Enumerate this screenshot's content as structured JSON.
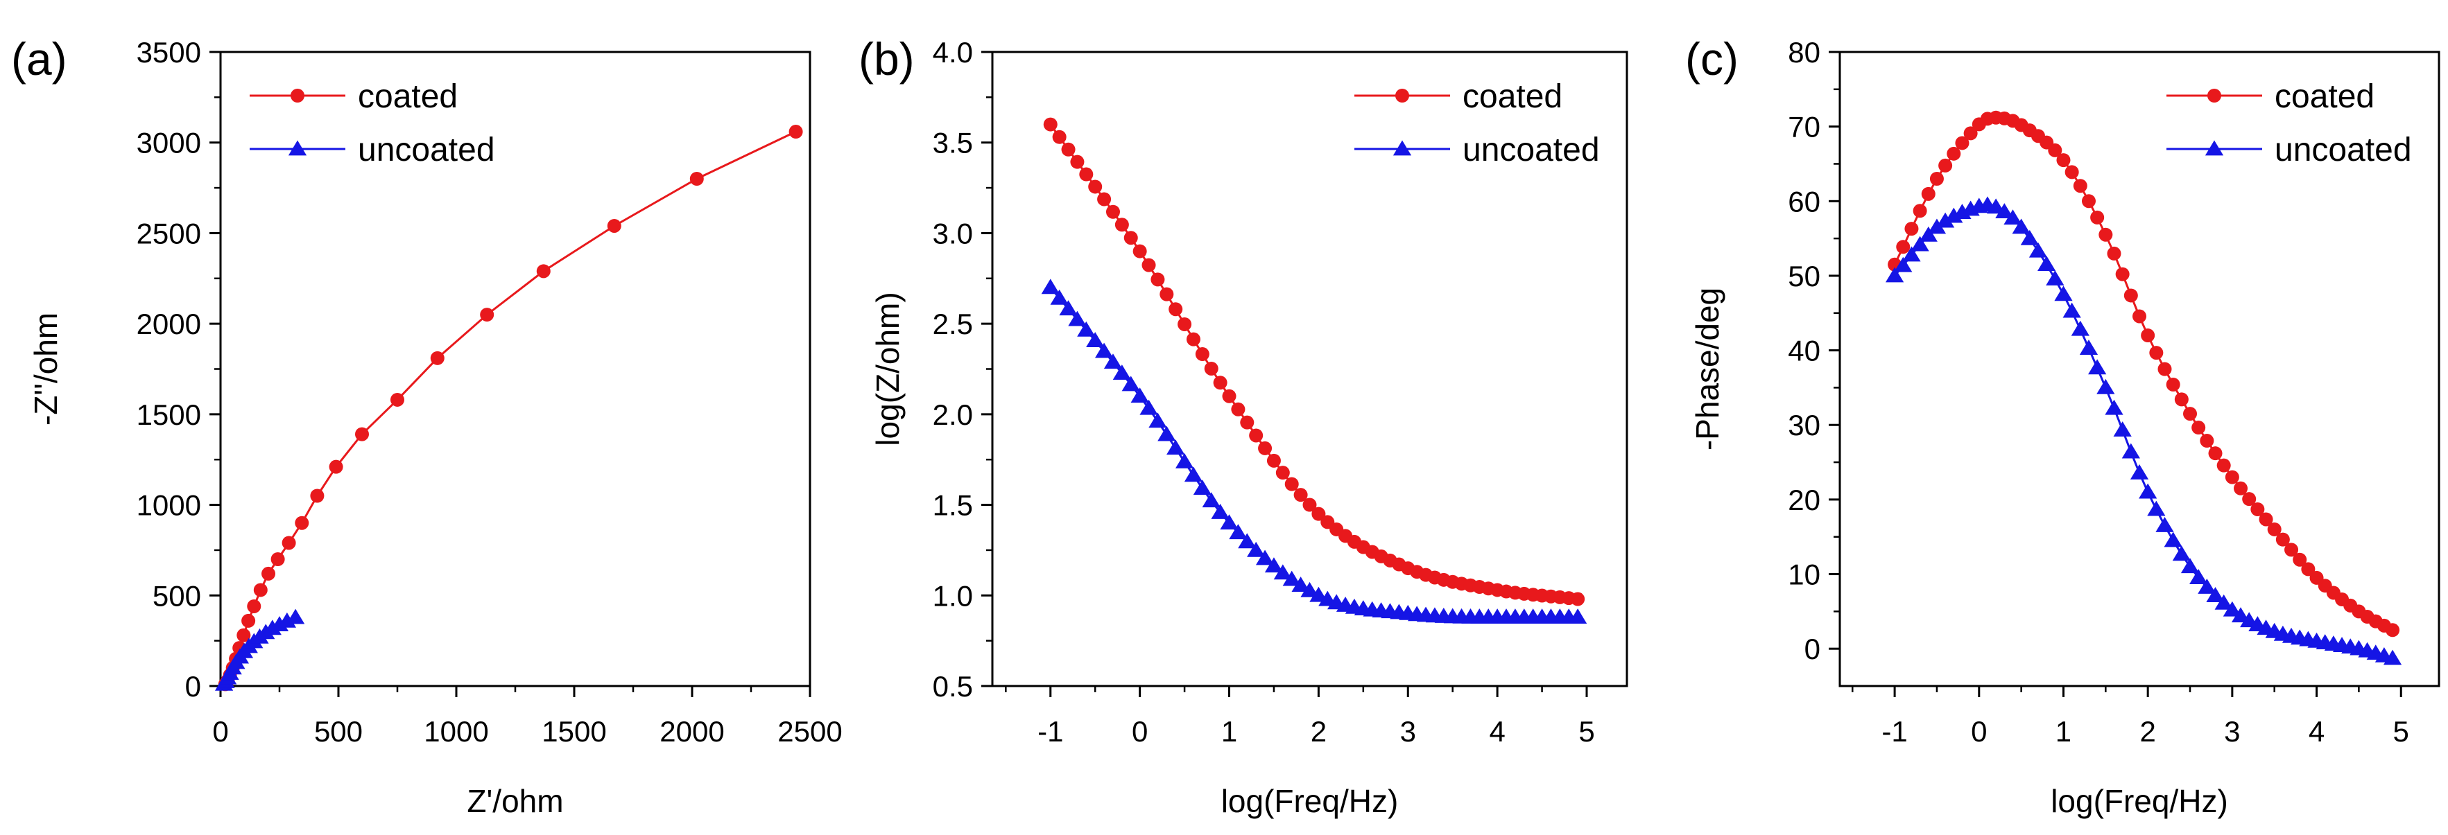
{
  "chart_data": [
    {
      "panel": "(a)",
      "type": "scatter",
      "xlabel": "Z'/ohm",
      "ylabel": "-Z''/ohm",
      "xlim": [
        0,
        2500
      ],
      "ylim": [
        0,
        3500
      ],
      "xticks": [
        0,
        500,
        1000,
        1500,
        2000,
        2500
      ],
      "yticks": [
        0,
        500,
        1000,
        1500,
        2000,
        2500,
        3000,
        3500
      ],
      "legend_position": "top-left",
      "series": [
        {
          "name": "coated",
          "color": "#e8191c",
          "marker": "circle",
          "x": [
            20,
            30,
            40,
            52,
            65,
            80,
            98,
            118,
            142,
            170,
            203,
            243,
            290,
            345,
            410,
            490,
            600,
            750,
            920,
            1130,
            1370,
            1670,
            2020,
            2440
          ],
          "y": [
            10,
            30,
            60,
            100,
            150,
            210,
            280,
            360,
            440,
            530,
            620,
            700,
            790,
            900,
            1050,
            1210,
            1390,
            1580,
            1810,
            2050,
            2290,
            2540,
            2800,
            3060
          ]
        },
        {
          "name": "uncoated",
          "color": "#1515e5",
          "marker": "triangle",
          "x": [
            15,
            22,
            30,
            40,
            52,
            66,
            82,
            100,
            120,
            142,
            166,
            192,
            220,
            250,
            282,
            318
          ],
          "y": [
            10,
            25,
            45,
            70,
            100,
            130,
            160,
            190,
            218,
            245,
            270,
            295,
            318,
            338,
            358,
            378
          ]
        }
      ]
    },
    {
      "panel": "(b)",
      "type": "scatter",
      "xlabel": "log(Freq/Hz)",
      "ylabel": "log(Z/ohm)",
      "xlim": [
        -1.65,
        5.45
      ],
      "ylim": [
        0.5,
        4.0
      ],
      "xticks": [
        -1,
        0,
        1,
        2,
        3,
        4,
        5
      ],
      "yticks": [
        0.5,
        1.0,
        1.5,
        2.0,
        2.5,
        3.0,
        3.5,
        4.0
      ],
      "ytick_labels": [
        "0.5",
        "1.0",
        "1.5",
        "2.0",
        "2.5",
        "3.0",
        "3.5",
        "4.0"
      ],
      "legend_position": "top-right",
      "series": [
        {
          "name": "coated",
          "color": "#e8191c",
          "marker": "circle",
          "curve": {
            "x0": -1.0,
            "x1": 4.9,
            "n": 60,
            "y_start": 3.6,
            "drop": 2.62,
            "taper": 0.255
          },
          "y_at_ticks": {
            "-1": 3.6,
            "0": 2.9,
            "1": 2.1,
            "2": 1.45,
            "3": 1.15,
            "4": 1.03,
            "4.9": 0.98
          }
        },
        {
          "name": "uncoated",
          "color": "#1515e5",
          "marker": "triangle",
          "curve": {
            "x0": -1.0,
            "x1": 4.9,
            "n": 60,
            "y_start": 2.7,
            "drop": 1.82,
            "taper": 0.42
          },
          "y_at_ticks": {
            "-1": 2.7,
            "0": 2.1,
            "1": 1.4,
            "2": 1.0,
            "3": 0.9,
            "4": 0.88,
            "4.9": 0.88
          }
        }
      ]
    },
    {
      "panel": "(c)",
      "type": "scatter",
      "xlabel": "log(Freq/Hz)",
      "ylabel": "-Phase/deg",
      "xlim": [
        -1.65,
        5.45
      ],
      "ylim": [
        -5,
        80
      ],
      "xticks": [
        -1,
        0,
        1,
        2,
        3,
        4,
        5
      ],
      "yticks": [
        0,
        10,
        20,
        30,
        40,
        50,
        60,
        70,
        80
      ],
      "legend_position": "top-right",
      "series": [
        {
          "name": "coated",
          "color": "#e8191c",
          "marker": "circle",
          "curve": {
            "x0": -1.0,
            "x1": 4.9,
            "n": 60
          },
          "points": [
            [
              -1.0,
              51.5
            ],
            [
              -0.5,
              63
            ],
            [
              0.0,
              70.3
            ],
            [
              0.2,
              71.2
            ],
            [
              0.5,
              70.2
            ],
            [
              1.0,
              65.5
            ],
            [
              1.5,
              55.5
            ],
            [
              2.0,
              42
            ],
            [
              2.5,
              31.5
            ],
            [
              3.0,
              23
            ],
            [
              3.5,
              16
            ],
            [
              4.0,
              9.5
            ],
            [
              4.5,
              5
            ],
            [
              4.9,
              2.5
            ]
          ]
        },
        {
          "name": "uncoated",
          "color": "#1515e5",
          "marker": "triangle",
          "curve": {
            "x0": -1.0,
            "x1": 4.9,
            "n": 60
          },
          "points": [
            [
              -1.0,
              50
            ],
            [
              -0.5,
              56.5
            ],
            [
              0.0,
              59.3
            ],
            [
              0.2,
              59.2
            ],
            [
              0.5,
              56.5
            ],
            [
              1.0,
              47.5
            ],
            [
              1.5,
              35
            ],
            [
              2.0,
              21
            ],
            [
              2.5,
              11
            ],
            [
              3.0,
              5.2
            ],
            [
              3.5,
              2.3
            ],
            [
              4.0,
              1.0
            ],
            [
              4.5,
              0.0
            ],
            [
              4.9,
              -1.3
            ]
          ]
        }
      ]
    }
  ]
}
